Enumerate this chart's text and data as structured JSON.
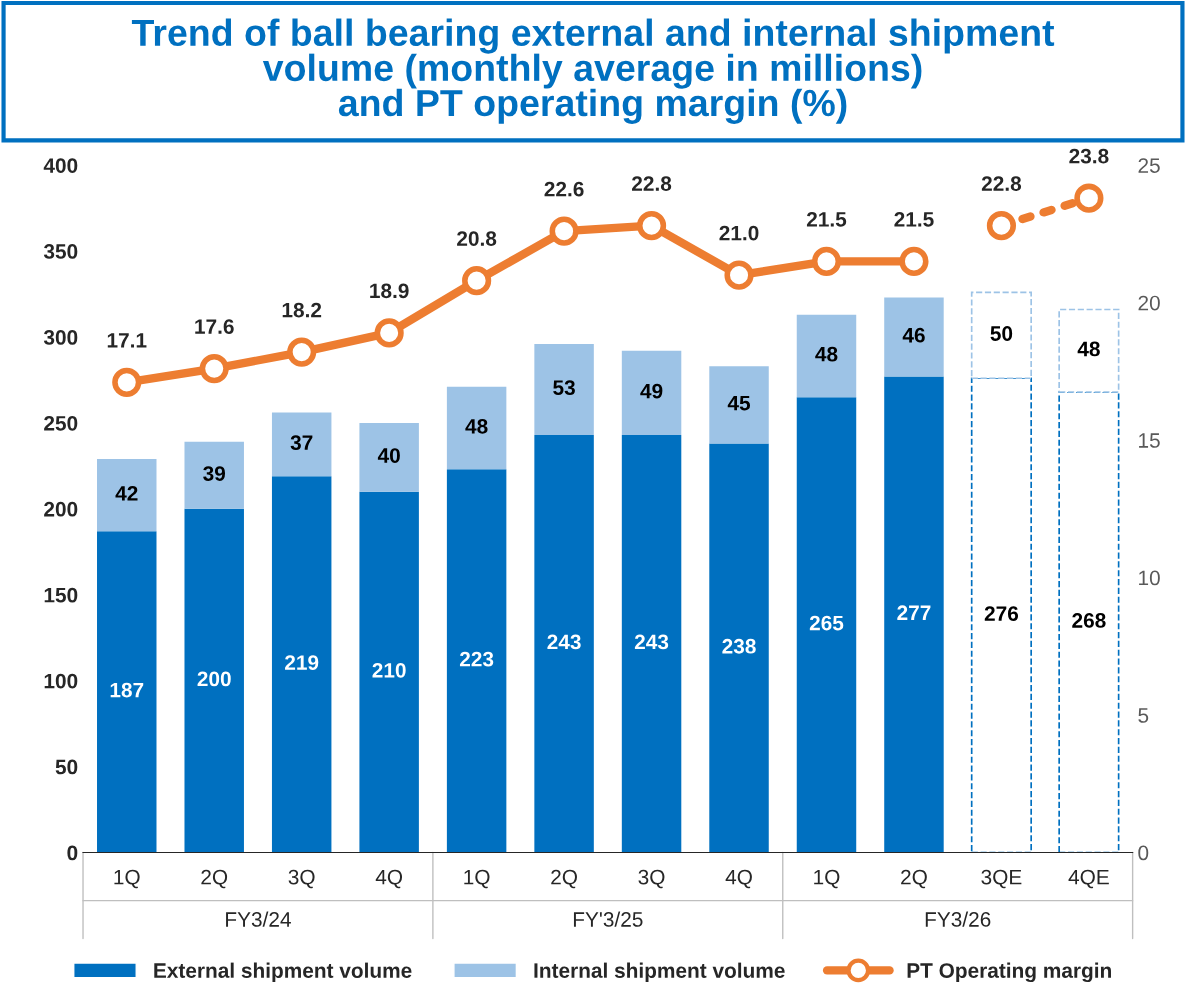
{
  "chart_data": {
    "type": "bar",
    "title": "Trend of ball bearing external and internal shipment\nvolume (monthly average in millions)\nand PT operating margin (%)",
    "categories": [
      "1Q",
      "2Q",
      "3Q",
      "4Q",
      "1Q",
      "2Q",
      "3Q",
      "4Q",
      "1Q",
      "2Q",
      "3QE",
      "4QE"
    ],
    "annotations": [
      "FY3/24",
      "FY'3/25",
      "FY3/26"
    ],
    "stacked": true,
    "data_labels": true,
    "legend": "bottom",
    "grid": false,
    "ylim": [
      0,
      400
    ],
    "yticks": [
      0,
      50,
      100,
      150,
      200,
      250,
      300,
      350,
      400
    ],
    "y2lim": [
      0,
      25
    ],
    "y2ticks": [
      0,
      5,
      10,
      15,
      20,
      25
    ],
    "series": [
      {
        "name": "External shipment volume",
        "color": "#0070c0",
        "colors": [
          "#0070c0",
          "#0070c0",
          "#0070c0",
          "#0070c0",
          "#0070c0",
          "#0070c0",
          "#0070c0",
          "#0070c0",
          "#0070c0",
          "#0070c0",
          "#ffffff",
          "#ffffff"
        ],
        "values": [
          187,
          200,
          219,
          210,
          223,
          243,
          243,
          238,
          265,
          277,
          276,
          268
        ]
      },
      {
        "name": "Internal shipment volume",
        "color": "#9dc3e6",
        "colors": [
          "#9dc3e6",
          "#9dc3e6",
          "#9dc3e6",
          "#9dc3e6",
          "#9dc3e6",
          "#9dc3e6",
          "#9dc3e6",
          "#9dc3e6",
          "#9dc3e6",
          "#9dc3e6",
          "#ffffff",
          "#ffffff"
        ],
        "values": [
          42,
          39,
          37,
          40,
          48,
          53,
          49,
          45,
          48,
          46,
          50,
          48
        ]
      },
      {
        "name": "PT Operating margin",
        "type": "line",
        "axis": "y2",
        "color": "#ed7d31",
        "marker": "circle",
        "line_style": "solid",
        "values": [
          17.1,
          17.6,
          18.2,
          18.9,
          20.8,
          22.6,
          22.8,
          21.0,
          21.5,
          21.5,
          null,
          null
        ],
        "value_labels": [
          "17.1",
          "17.6",
          "18.2",
          "18.9",
          "20.8",
          "22.6",
          "22.8",
          "21.0",
          "21.5",
          "21.5",
          null,
          null
        ]
      },
      {
        "type": "line",
        "axis": "y2",
        "color": "#ed7d31",
        "marker": "circle",
        "line_style": "dotted",
        "values": [
          null,
          null,
          null,
          null,
          null,
          null,
          null,
          null,
          null,
          null,
          22.8,
          23.8
        ],
        "value_labels": [
          null,
          null,
          null,
          null,
          null,
          null,
          null,
          null,
          null,
          null,
          "22.8",
          "23.8"
        ]
      }
    ]
  }
}
